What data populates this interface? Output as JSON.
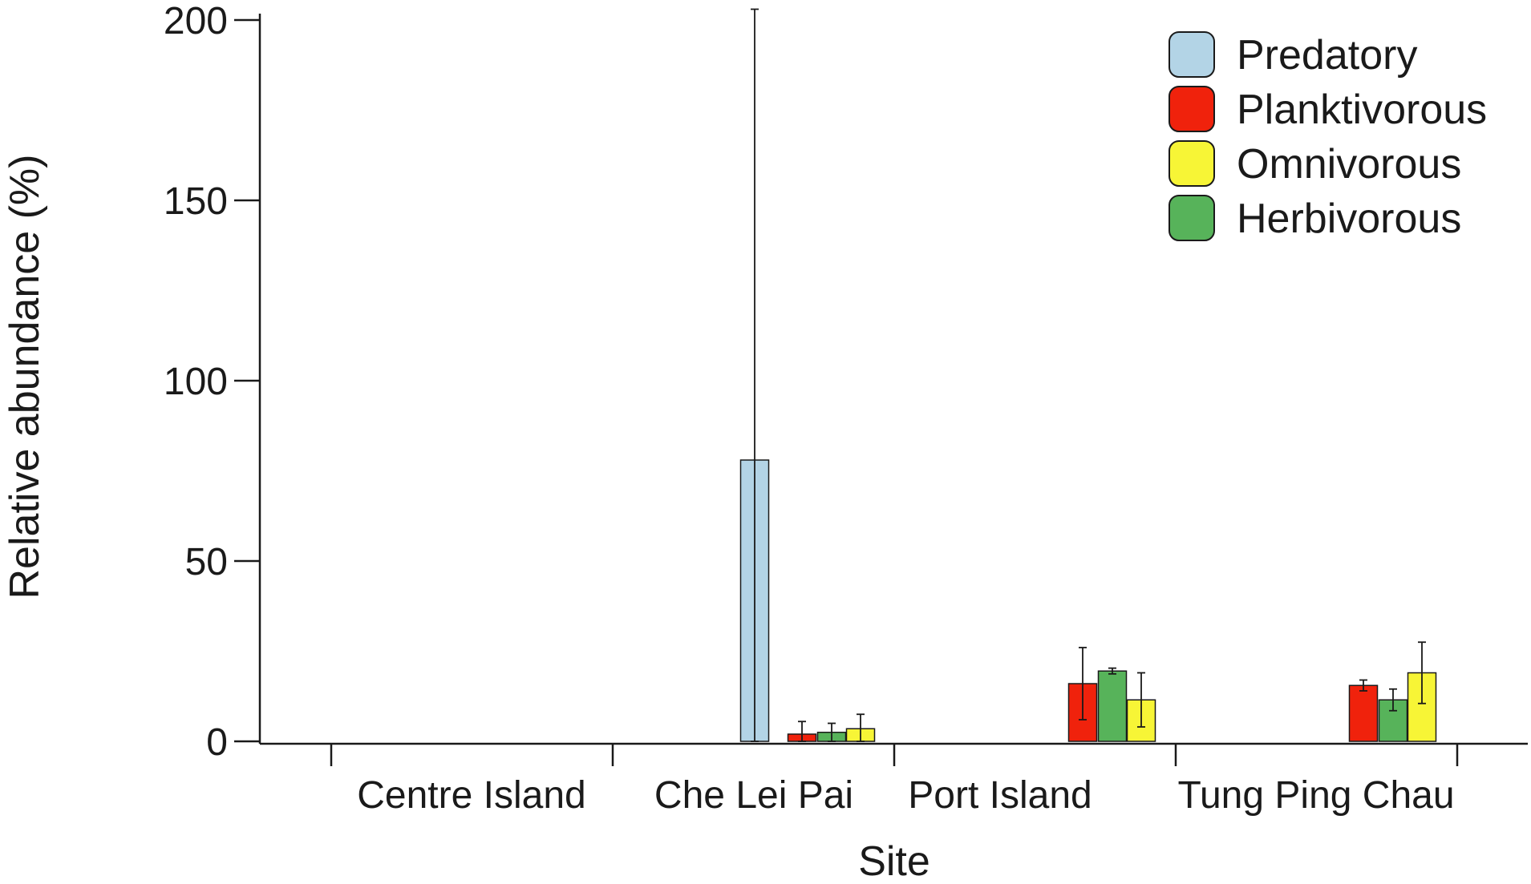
{
  "chart_data": {
    "type": "bar",
    "xlabel": "Site",
    "ylabel": "Relative abundance (%)",
    "ylim": [
      0,
      200
    ],
    "yticks": [
      0,
      50,
      100,
      150,
      200
    ],
    "categories": [
      "Centre Island",
      "Che Lei Pai",
      "Port Island",
      "Tung Ping Chau"
    ],
    "legend_position": "top-right",
    "series": [
      {
        "name": "Predatory",
        "color": "#b3d4e6",
        "values": [
          0,
          78,
          0,
          0
        ],
        "error": [
          0,
          125,
          0,
          0
        ]
      },
      {
        "name": "Planktivorous",
        "color": "#f0220c",
        "values": [
          0,
          2,
          16,
          15.5
        ],
        "error": [
          0,
          3.5,
          10,
          1.5
        ]
      },
      {
        "name": "Herbivorous",
        "color": "#57b35a",
        "values": [
          0,
          2.5,
          19.5,
          11.5
        ],
        "error": [
          0,
          2.5,
          0.8,
          3
        ]
      },
      {
        "name": "Omnivorous",
        "color": "#f7f536",
        "values": [
          0,
          3.5,
          11.5,
          19
        ],
        "error": [
          0,
          4,
          7.5,
          8.5
        ]
      }
    ],
    "legend_order": [
      "Predatory",
      "Planktivorous",
      "Omnivorous",
      "Herbivorous"
    ]
  }
}
